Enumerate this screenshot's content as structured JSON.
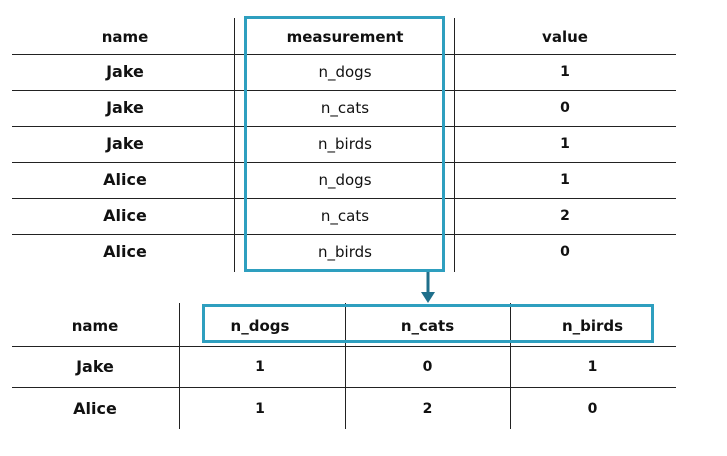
{
  "long_table": {
    "headers": [
      "name",
      "measurement",
      "value"
    ],
    "rows": [
      [
        "Jake",
        "n_dogs",
        "1"
      ],
      [
        "Jake",
        "n_cats",
        "0"
      ],
      [
        "Jake",
        "n_birds",
        "1"
      ],
      [
        "Alice",
        "n_dogs",
        "1"
      ],
      [
        "Alice",
        "n_cats",
        "2"
      ],
      [
        "Alice",
        "n_birds",
        "0"
      ]
    ]
  },
  "wide_table": {
    "headers": [
      "name",
      "n_dogs",
      "n_cats",
      "n_birds"
    ],
    "rows": [
      [
        "Jake",
        "1",
        "0",
        "1"
      ],
      [
        "Alice",
        "1",
        "2",
        "0"
      ]
    ]
  },
  "colors": {
    "highlight": "#2e9fbf",
    "rule": "#222222",
    "arrow": "#1f6f8b"
  }
}
